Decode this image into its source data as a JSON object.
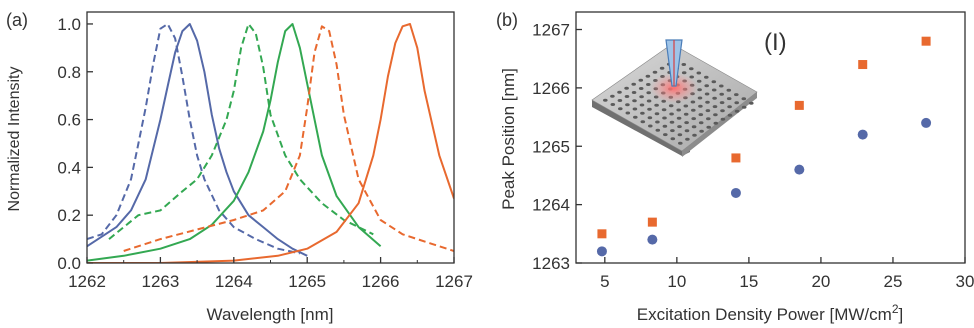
{
  "colors": {
    "blue": "#5569a8",
    "green": "#33a852",
    "orange": "#e8692f",
    "axis": "#333333"
  },
  "chart_data": [
    {
      "panel_label": "(a)",
      "type": "line",
      "xlabel": "Wavelength [nm]",
      "ylabel": "Normalized Intensity",
      "xlim": [
        1262,
        1267
      ],
      "ylim": [
        0,
        1.05
      ],
      "xticks": [
        "1262",
        "1263",
        "1264",
        "1265",
        "1266",
        "1267"
      ],
      "yticks": [
        "0.0",
        "0.2",
        "0.4",
        "0.6",
        "0.8",
        "1.0"
      ],
      "grid": false,
      "series": [
        {
          "color": "blue",
          "style": "solid",
          "x": [
            1262.0,
            1262.4,
            1262.6,
            1262.8,
            1263.0,
            1263.1,
            1263.2,
            1263.3,
            1263.4,
            1263.5,
            1263.6,
            1263.7,
            1263.8,
            1263.9,
            1264.0,
            1264.2,
            1264.4,
            1264.6,
            1264.8,
            1265.0
          ],
          "y": [
            0.07,
            0.15,
            0.22,
            0.35,
            0.6,
            0.74,
            0.88,
            0.97,
            1.0,
            0.93,
            0.8,
            0.62,
            0.48,
            0.38,
            0.3,
            0.2,
            0.15,
            0.1,
            0.06,
            0.03
          ]
        },
        {
          "color": "blue",
          "style": "dashed",
          "x": [
            1262.0,
            1262.2,
            1262.4,
            1262.6,
            1262.7,
            1262.8,
            1262.9,
            1263.0,
            1263.1,
            1263.2,
            1263.3,
            1263.4,
            1263.5,
            1263.6,
            1263.8,
            1264.0,
            1264.3,
            1264.6,
            1264.9
          ],
          "y": [
            0.1,
            0.12,
            0.2,
            0.35,
            0.5,
            0.65,
            0.83,
            0.98,
            1.0,
            0.94,
            0.78,
            0.6,
            0.45,
            0.35,
            0.22,
            0.15,
            0.1,
            0.06,
            0.04
          ]
        },
        {
          "color": "green",
          "style": "solid",
          "x": [
            1262.0,
            1262.5,
            1263.0,
            1263.4,
            1263.7,
            1264.0,
            1264.2,
            1264.4,
            1264.5,
            1264.6,
            1264.7,
            1264.8,
            1264.9,
            1265.0,
            1265.2,
            1265.4,
            1265.7,
            1266.0
          ],
          "y": [
            0.01,
            0.03,
            0.06,
            0.1,
            0.16,
            0.26,
            0.38,
            0.55,
            0.68,
            0.84,
            0.97,
            1.0,
            0.9,
            0.75,
            0.45,
            0.28,
            0.15,
            0.07
          ]
        },
        {
          "color": "green",
          "style": "dashed",
          "x": [
            1262.3,
            1262.7,
            1263.0,
            1263.3,
            1263.5,
            1263.7,
            1263.9,
            1264.0,
            1264.1,
            1264.2,
            1264.3,
            1264.4,
            1264.5,
            1264.7,
            1264.9,
            1265.2,
            1265.5,
            1265.9
          ],
          "y": [
            0.1,
            0.2,
            0.22,
            0.3,
            0.35,
            0.45,
            0.6,
            0.72,
            0.9,
            1.0,
            0.96,
            0.82,
            0.62,
            0.45,
            0.35,
            0.25,
            0.18,
            0.12
          ]
        },
        {
          "color": "orange",
          "style": "solid",
          "x": [
            1262.0,
            1263.0,
            1264.0,
            1264.6,
            1265.0,
            1265.4,
            1265.7,
            1265.9,
            1266.0,
            1266.1,
            1266.2,
            1266.3,
            1266.4,
            1266.5,
            1266.6,
            1266.8,
            1267.0
          ],
          "y": [
            0.0,
            0.0,
            0.01,
            0.03,
            0.06,
            0.13,
            0.25,
            0.45,
            0.6,
            0.78,
            0.92,
            0.99,
            1.0,
            0.9,
            0.72,
            0.45,
            0.27
          ]
        },
        {
          "color": "orange",
          "style": "dashed",
          "x": [
            1262.5,
            1263.0,
            1263.5,
            1264.0,
            1264.4,
            1264.7,
            1264.9,
            1265.0,
            1265.1,
            1265.2,
            1265.3,
            1265.4,
            1265.5,
            1265.7,
            1266.0,
            1266.3,
            1266.7,
            1267.0
          ],
          "y": [
            0.05,
            0.1,
            0.14,
            0.18,
            0.22,
            0.3,
            0.45,
            0.65,
            0.88,
            0.99,
            0.97,
            0.83,
            0.62,
            0.35,
            0.18,
            0.12,
            0.08,
            0.05
          ]
        }
      ]
    },
    {
      "panel_label": "(b)",
      "type": "scatter",
      "xlabel": "Excitation Density Power [MW/cm",
      "xlabel_sup": "2",
      "xlabel_end": "]",
      "ylabel": "Peak Position [nm]",
      "xlim": [
        3,
        30
      ],
      "ylim": [
        1263,
        1267.3
      ],
      "xticks": [
        "5",
        "10",
        "15",
        "20",
        "25",
        "30"
      ],
      "yticks": [
        "1263",
        "1264",
        "1265",
        "1266",
        "1267"
      ],
      "grid": false,
      "inset_label": "(I)",
      "series": [
        {
          "color": "orange",
          "marker": "square",
          "x": [
            4.8,
            8.3,
            14.1,
            18.5,
            22.9,
            27.3
          ],
          "y": [
            1263.5,
            1263.7,
            1264.8,
            1265.7,
            1266.4,
            1266.8
          ]
        },
        {
          "color": "blue",
          "marker": "circle",
          "x": [
            4.8,
            8.3,
            14.1,
            18.5,
            22.9,
            27.3
          ],
          "y": [
            1263.2,
            1263.4,
            1264.2,
            1264.6,
            1265.2,
            1265.4
          ]
        }
      ]
    }
  ]
}
